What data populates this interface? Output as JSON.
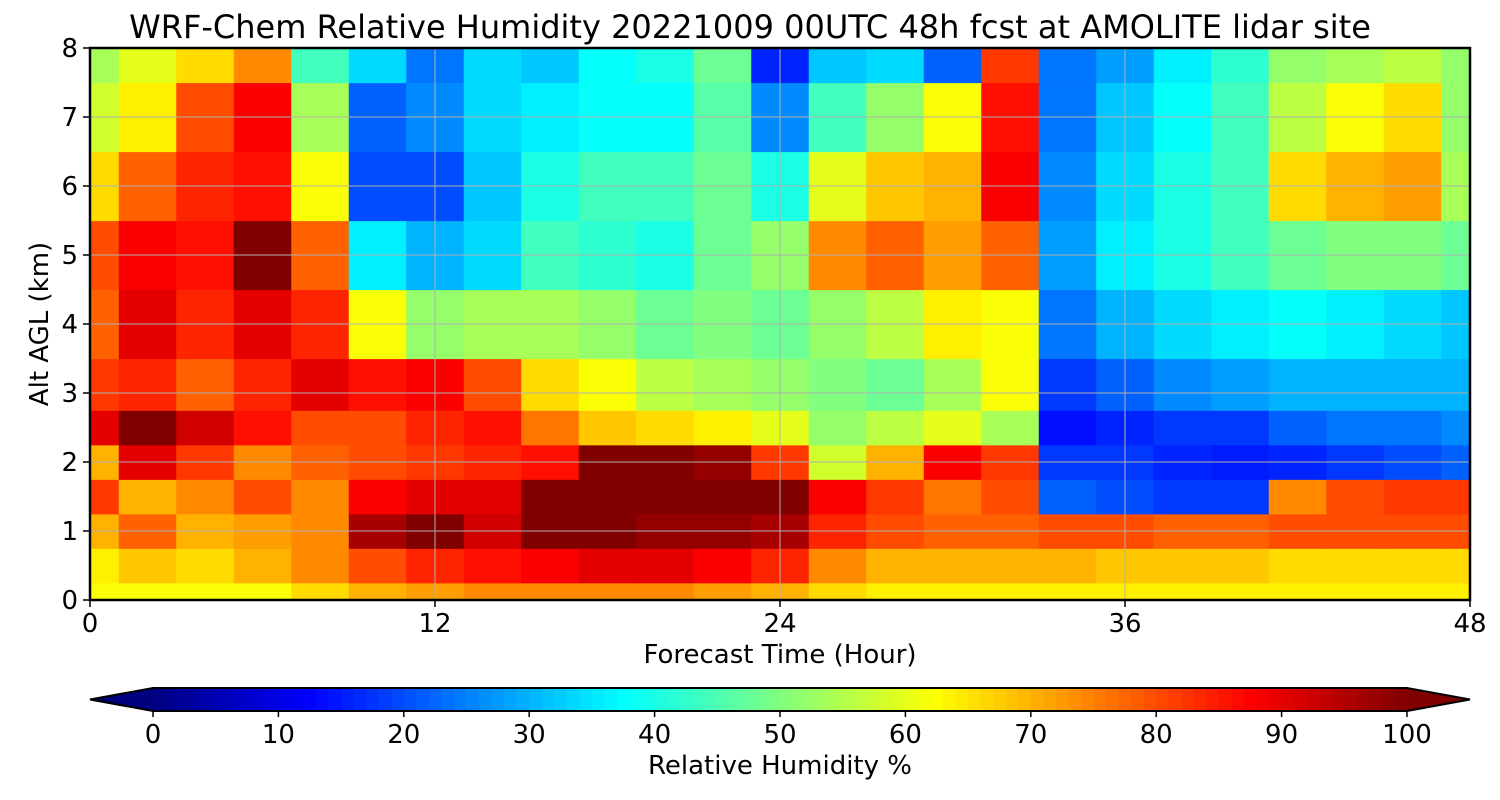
{
  "chart_data": {
    "type": "heatmap",
    "title": "WRF-Chem Relative Humidity 20221009 00UTC 48h fcst at AMOLITE lidar site",
    "xlabel": "Forecast Time (Hour)",
    "ylabel": "Alt AGL (km)",
    "xlim": [
      0,
      48
    ],
    "ylim": [
      0,
      8
    ],
    "x_ticks": [
      0,
      12,
      24,
      36,
      48
    ],
    "y_ticks": [
      0,
      1,
      2,
      3,
      4,
      5,
      6,
      7,
      8
    ],
    "grid": true,
    "colormap": "jet",
    "colorbar": {
      "label": "Relative Humidity %",
      "range": [
        0,
        100
      ],
      "ticks": [
        0,
        10,
        20,
        30,
        40,
        50,
        60,
        70,
        80,
        90,
        100
      ],
      "orientation": "horizontal",
      "extend": "both",
      "under_color": "#00007f",
      "over_color": "#7f0000"
    },
    "x": [
      0,
      2,
      4,
      6,
      8,
      10,
      12,
      14,
      16,
      18,
      20,
      22,
      24,
      26,
      28,
      30,
      32,
      34,
      36,
      38,
      40,
      42,
      44,
      46,
      48
    ],
    "y": [
      0,
      0.5,
      1,
      1.5,
      2,
      2.5,
      3,
      4,
      5,
      6,
      7,
      8
    ],
    "z": [
      [
        62,
        62,
        62,
        62,
        66,
        70,
        72,
        74,
        74,
        74,
        74,
        72,
        70,
        66,
        64,
        64,
        64,
        64,
        64,
        64,
        64,
        64,
        64,
        64,
        64
      ],
      [
        64,
        68,
        66,
        70,
        74,
        80,
        84,
        86,
        88,
        90,
        90,
        88,
        84,
        74,
        70,
        70,
        70,
        70,
        68,
        68,
        68,
        66,
        66,
        66,
        66
      ],
      [
        70,
        78,
        70,
        72,
        74,
        96,
        100,
        92,
        100,
        100,
        98,
        98,
        96,
        84,
        80,
        78,
        78,
        80,
        80,
        78,
        78,
        80,
        80,
        80,
        80
      ],
      [
        82,
        70,
        74,
        80,
        74,
        88,
        90,
        90,
        100,
        100,
        100,
        100,
        100,
        88,
        82,
        76,
        80,
        22,
        20,
        18,
        18,
        74,
        80,
        82,
        82
      ],
      [
        70,
        90,
        82,
        74,
        78,
        80,
        82,
        84,
        86,
        100,
        100,
        98,
        82,
        58,
        70,
        88,
        82,
        18,
        18,
        16,
        15,
        16,
        18,
        20,
        22
      ],
      [
        90,
        100,
        92,
        86,
        80,
        80,
        84,
        86,
        76,
        68,
        66,
        64,
        60,
        52,
        56,
        60,
        54,
        14,
        16,
        18,
        18,
        22,
        24,
        24,
        26
      ],
      [
        82,
        84,
        78,
        84,
        90,
        86,
        88,
        80,
        66,
        62,
        56,
        54,
        52,
        50,
        48,
        54,
        62,
        18,
        22,
        26,
        28,
        30,
        30,
        30,
        30
      ],
      [
        78,
        90,
        84,
        90,
        84,
        62,
        52,
        54,
        54,
        52,
        48,
        50,
        48,
        52,
        56,
        64,
        62,
        24,
        30,
        34,
        36,
        38,
        36,
        34,
        32
      ],
      [
        80,
        88,
        86,
        100,
        78,
        36,
        30,
        34,
        44,
        42,
        40,
        48,
        52,
        74,
        78,
        72,
        78,
        28,
        36,
        40,
        44,
        48,
        50,
        50,
        48
      ],
      [
        66,
        78,
        84,
        86,
        62,
        20,
        20,
        32,
        40,
        44,
        44,
        48,
        40,
        60,
        68,
        70,
        88,
        26,
        34,
        40,
        44,
        66,
        70,
        72,
        54
      ],
      [
        58,
        64,
        80,
        88,
        54,
        22,
        26,
        34,
        36,
        38,
        38,
        46,
        26,
        44,
        52,
        62,
        86,
        24,
        32,
        38,
        44,
        56,
        62,
        66,
        52
      ],
      [
        54,
        60,
        66,
        74,
        44,
        34,
        24,
        34,
        32,
        38,
        40,
        48,
        16,
        32,
        34,
        22,
        82,
        24,
        28,
        36,
        42,
        52,
        54,
        56,
        52
      ]
    ]
  }
}
